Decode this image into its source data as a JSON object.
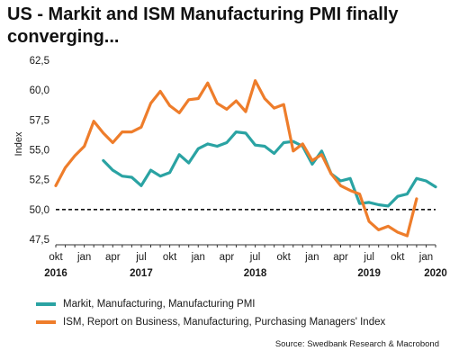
{
  "title": "US -  Markit and ISM Manufacturing PMI finally converging...",
  "source": "Source: Swedbank Research & Macrobond",
  "colors": {
    "markit": "#2aa3a3",
    "ism": "#ee7d2b",
    "reference": "#111111"
  },
  "chart_data": {
    "type": "line",
    "title": "US -  Markit and ISM Manufacturing PMI finally converging...",
    "xlabel": "",
    "ylabel": "Index",
    "ylim": [
      47.5,
      62.5
    ],
    "yticks": [
      "47,5",
      "50,0",
      "52,5",
      "55,0",
      "57,5",
      "60,0",
      "62,5"
    ],
    "x_start": "2016-10",
    "x_end": "2020-02",
    "month_ticks": [
      {
        "date": "2016-10",
        "label": "okt"
      },
      {
        "date": "2017-01",
        "label": "jan"
      },
      {
        "date": "2017-04",
        "label": "apr"
      },
      {
        "date": "2017-07",
        "label": "jul"
      },
      {
        "date": "2017-10",
        "label": "okt"
      },
      {
        "date": "2018-01",
        "label": "jan"
      },
      {
        "date": "2018-04",
        "label": "apr"
      },
      {
        "date": "2018-07",
        "label": "jul"
      },
      {
        "date": "2018-10",
        "label": "okt"
      },
      {
        "date": "2019-01",
        "label": "jan"
      },
      {
        "date": "2019-04",
        "label": "apr"
      },
      {
        "date": "2019-07",
        "label": "jul"
      },
      {
        "date": "2019-10",
        "label": "okt"
      },
      {
        "date": "2020-01",
        "label": "jan"
      }
    ],
    "year_labels": [
      {
        "date": "2016-10",
        "label": "2016"
      },
      {
        "date": "2017-07",
        "label": "2017"
      },
      {
        "date": "2018-07",
        "label": "2018"
      },
      {
        "date": "2019-07",
        "label": "2019"
      },
      {
        "date": "2020-02",
        "label": "2020"
      }
    ],
    "reference_line": 50.0,
    "grid": false,
    "legend_position": "bottom",
    "series": [
      {
        "name": "Markit, Manufacturing, Manufacturing PMI",
        "start": "2017-03",
        "values": [
          54.1,
          53.3,
          52.8,
          52.7,
          52.0,
          53.3,
          52.8,
          53.1,
          54.6,
          53.9,
          55.1,
          55.5,
          55.3,
          55.6,
          56.5,
          56.4,
          55.4,
          55.3,
          54.7,
          55.6,
          55.7,
          55.3,
          53.8,
          54.9,
          53.0,
          52.4,
          52.6,
          50.5,
          50.6,
          50.4,
          50.3,
          51.1,
          51.3,
          52.6,
          52.4,
          51.9
        ]
      },
      {
        "name": "ISM, Report on Business, Manufacturing, Purchasing Managers' Index",
        "start": "2016-10",
        "values": [
          52.0,
          53.5,
          54.5,
          55.3,
          57.4,
          56.4,
          55.6,
          56.5,
          56.5,
          56.9,
          58.9,
          59.9,
          58.7,
          58.1,
          59.2,
          59.3,
          60.6,
          58.9,
          58.4,
          59.1,
          58.2,
          60.8,
          59.3,
          58.5,
          58.8,
          54.9,
          55.5,
          54.1,
          54.6,
          53.0,
          52.0,
          51.6,
          51.3,
          49.0,
          48.3,
          48.6,
          48.1,
          47.8,
          50.9
        ]
      }
    ]
  }
}
